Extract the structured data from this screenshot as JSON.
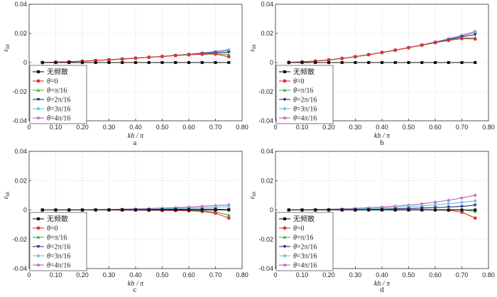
{
  "chart_data": [
    {
      "type": "line",
      "panel_label": "a",
      "xlabel": "kh / π",
      "ylabel": "ε_kh",
      "xlim": [
        0,
        0.8
      ],
      "ylim": [
        -0.04,
        0.04
      ],
      "xticks": [
        "0",
        "0.10",
        "0.20",
        "0.30",
        "0.40",
        "0.50",
        "0.60",
        "0.70",
        "0.80"
      ],
      "yticks": [
        "0.04",
        "0.02",
        "0",
        "-0.02",
        "-0.04"
      ],
      "grid": true,
      "legend_position": "bottom-left",
      "x": [
        0.05,
        0.1,
        0.15,
        0.2,
        0.25,
        0.3,
        0.35,
        0.4,
        0.45,
        0.5,
        0.55,
        0.6,
        0.65,
        0.7,
        0.75
      ],
      "series": [
        {
          "name": "无频散",
          "color": "#111111",
          "marker": "square",
          "values": [
            0,
            0,
            0,
            0,
            0,
            0,
            0,
            0,
            0,
            0,
            0,
            0,
            0,
            0,
            0
          ]
        },
        {
          "name": "θ=0",
          "color": "#e03030",
          "marker": "circle",
          "values": [
            0.0,
            0.0002,
            0.0005,
            0.0009,
            0.0014,
            0.0019,
            0.0024,
            0.003,
            0.0036,
            0.0042,
            0.0048,
            0.0053,
            0.0057,
            0.0058,
            0.004
          ]
        },
        {
          "name": "θ=π/16",
          "color": "#44b044",
          "marker": "triangle-up",
          "values": [
            0.0,
            0.0002,
            0.0005,
            0.0009,
            0.0014,
            0.0019,
            0.0024,
            0.003,
            0.0036,
            0.0042,
            0.0048,
            0.0054,
            0.0059,
            0.0062,
            0.0054
          ]
        },
        {
          "name": "θ=2π/16",
          "color": "#2a2a8a",
          "marker": "triangle-down",
          "values": [
            0.0,
            0.0002,
            0.0005,
            0.0009,
            0.0014,
            0.0019,
            0.0024,
            0.003,
            0.0036,
            0.0042,
            0.0049,
            0.0055,
            0.0062,
            0.0068,
            0.007
          ]
        },
        {
          "name": "θ=3π/16",
          "color": "#5bc8d8",
          "marker": "diamond",
          "values": [
            0.0,
            0.0002,
            0.0005,
            0.0009,
            0.0014,
            0.0019,
            0.0024,
            0.003,
            0.0036,
            0.0042,
            0.0049,
            0.0056,
            0.0064,
            0.0073,
            0.0082
          ]
        },
        {
          "name": "θ=4π/16",
          "color": "#c060c0",
          "marker": "star",
          "values": [
            0.0,
            0.0002,
            0.0005,
            0.0009,
            0.0014,
            0.0019,
            0.0024,
            0.003,
            0.0036,
            0.0042,
            0.0049,
            0.0057,
            0.0066,
            0.0076,
            0.0088
          ]
        }
      ]
    },
    {
      "type": "line",
      "panel_label": "b",
      "xlabel": "kh / π",
      "ylabel": "ε_kh",
      "xlim": [
        0,
        0.8
      ],
      "ylim": [
        -0.04,
        0.04
      ],
      "xticks": [
        "0",
        "0.10",
        "0.20",
        "0.30",
        "0.40",
        "0.50",
        "0.60",
        "0.70",
        "0.80"
      ],
      "yticks": [
        "0.04",
        "0.02",
        "0",
        "-0.02",
        "-0.04"
      ],
      "grid": true,
      "legend_position": "bottom-left",
      "x": [
        0.05,
        0.1,
        0.15,
        0.2,
        0.25,
        0.3,
        0.35,
        0.4,
        0.45,
        0.5,
        0.55,
        0.6,
        0.65,
        0.7,
        0.75
      ],
      "series": [
        {
          "name": "无频散",
          "color": "#111111",
          "marker": "square",
          "values": [
            0,
            0,
            0,
            0,
            0,
            0,
            0,
            0,
            0,
            0,
            0,
            0,
            0,
            0,
            0
          ]
        },
        {
          "name": "θ=0",
          "color": "#e03030",
          "marker": "circle",
          "values": [
            0.0001,
            0.0004,
            0.001,
            0.0018,
            0.0028,
            0.004,
            0.0054,
            0.0069,
            0.0085,
            0.0102,
            0.0119,
            0.0136,
            0.0152,
            0.0164,
            0.0162
          ]
        },
        {
          "name": "θ=π/16",
          "color": "#44b044",
          "marker": "triangle-up",
          "values": [
            0.0001,
            0.0004,
            0.001,
            0.0018,
            0.0028,
            0.004,
            0.0054,
            0.0069,
            0.0085,
            0.0102,
            0.0119,
            0.0137,
            0.0154,
            0.0168,
            0.017
          ]
        },
        {
          "name": "θ=2π/16",
          "color": "#2a2a8a",
          "marker": "triangle-down",
          "values": [
            0.0001,
            0.0004,
            0.001,
            0.0018,
            0.0028,
            0.004,
            0.0054,
            0.0069,
            0.0085,
            0.0102,
            0.012,
            0.0139,
            0.0158,
            0.0177,
            0.0192
          ]
        },
        {
          "name": "θ=3π/16",
          "color": "#5bc8d8",
          "marker": "diamond",
          "values": [
            0.0001,
            0.0004,
            0.001,
            0.0018,
            0.0028,
            0.004,
            0.0054,
            0.0069,
            0.0085,
            0.0102,
            0.012,
            0.014,
            0.0161,
            0.0183,
            0.0205
          ]
        },
        {
          "name": "θ=4π/16",
          "color": "#c060c0",
          "marker": "star",
          "values": [
            0.0001,
            0.0004,
            0.001,
            0.0018,
            0.0028,
            0.004,
            0.0054,
            0.0069,
            0.0085,
            0.0103,
            0.0121,
            0.0141,
            0.0163,
            0.0187,
            0.0213
          ]
        }
      ]
    },
    {
      "type": "line",
      "panel_label": "c",
      "xlabel": "kh / π",
      "ylabel": "ε_kh",
      "xlim": [
        0,
        0.8
      ],
      "ylim": [
        -0.04,
        0.04
      ],
      "xticks": [
        "0",
        "0.10",
        "0.20",
        "0.30",
        "0.40",
        "0.50",
        "0.60",
        "0.70",
        "0.80"
      ],
      "yticks": [
        "0.04",
        "0.02",
        "0",
        "-0.02",
        "-0.04"
      ],
      "grid": true,
      "legend_position": "bottom-left",
      "x": [
        0.05,
        0.1,
        0.15,
        0.2,
        0.25,
        0.3,
        0.35,
        0.4,
        0.45,
        0.5,
        0.55,
        0.6,
        0.65,
        0.7,
        0.75
      ],
      "series": [
        {
          "name": "无频散",
          "color": "#111111",
          "marker": "square",
          "values": [
            0,
            0,
            0,
            0,
            0,
            0,
            0,
            0,
            0,
            0,
            0,
            0,
            0,
            0,
            0
          ]
        },
        {
          "name": "θ=0",
          "color": "#e03030",
          "marker": "circle",
          "values": [
            0,
            0,
            0,
            0,
            0,
            0,
            -0.0001,
            -0.0001,
            -0.0002,
            -0.0003,
            -0.0004,
            -0.0006,
            -0.001,
            -0.0022,
            -0.0055
          ]
        },
        {
          "name": "θ=π/16",
          "color": "#44b044",
          "marker": "triangle-up",
          "values": [
            0,
            0,
            0,
            0,
            0,
            0,
            0,
            0,
            -0.0001,
            -0.0001,
            -0.0002,
            -0.0003,
            -0.0006,
            -0.0014,
            -0.0035
          ]
        },
        {
          "name": "θ=2π/16",
          "color": "#2a2a8a",
          "marker": "triangle-down",
          "values": [
            0,
            0,
            0,
            0,
            0.0001,
            0.0001,
            0.0002,
            0.0002,
            0.0003,
            0.0004,
            0.0005,
            0.0006,
            0.0006,
            0.0006,
            0.0002
          ]
        },
        {
          "name": "θ=3π/16",
          "color": "#5bc8d8",
          "marker": "diamond",
          "values": [
            0,
            0,
            0.0001,
            0.0001,
            0.0002,
            0.0003,
            0.0004,
            0.0005,
            0.0007,
            0.0009,
            0.0011,
            0.0013,
            0.0016,
            0.0019,
            0.0022
          ]
        },
        {
          "name": "θ=4π/16",
          "color": "#c060c0",
          "marker": "star",
          "values": [
            0,
            0.0001,
            0.0001,
            0.0002,
            0.0003,
            0.0004,
            0.0006,
            0.0008,
            0.001,
            0.0013,
            0.0016,
            0.002,
            0.0025,
            0.003,
            0.0035
          ]
        }
      ]
    },
    {
      "type": "line",
      "panel_label": "d",
      "xlabel": "kh / π",
      "ylabel": "ε_kh",
      "xlim": [
        0,
        0.8
      ],
      "ylim": [
        -0.04,
        0.04
      ],
      "xticks": [
        "0",
        "0.10",
        "0.20",
        "0.30",
        "0.40",
        "0.50",
        "0.60",
        "0.70",
        "0.80"
      ],
      "yticks": [
        "0.04",
        "0.02",
        "0",
        "-0.02",
        "-0.04"
      ],
      "grid": true,
      "legend_position": "bottom-left",
      "x": [
        0.05,
        0.1,
        0.15,
        0.2,
        0.25,
        0.3,
        0.35,
        0.4,
        0.45,
        0.5,
        0.55,
        0.6,
        0.65,
        0.7,
        0.75
      ],
      "series": [
        {
          "name": "无频散",
          "color": "#111111",
          "marker": "square",
          "values": [
            0,
            0,
            0,
            0,
            0,
            0,
            0,
            0,
            0,
            0,
            0,
            0,
            0,
            0,
            0
          ]
        },
        {
          "name": "θ=0",
          "color": "#e03030",
          "marker": "circle",
          "values": [
            0,
            0,
            0,
            0,
            0,
            0,
            0,
            0,
            0,
            0,
            0,
            0,
            -0.0002,
            -0.0015,
            -0.0055
          ]
        },
        {
          "name": "θ=π/16",
          "color": "#44b044",
          "marker": "triangle-up",
          "values": [
            0,
            0,
            0,
            0,
            0,
            0.0001,
            0.0001,
            0.0001,
            0.0002,
            0.0002,
            0.0003,
            0.0003,
            0.0003,
            0.0002,
            -0.001
          ]
        },
        {
          "name": "θ=2π/16",
          "color": "#2a2a8a",
          "marker": "triangle-down",
          "values": [
            0,
            0,
            0.0001,
            0.0001,
            0.0002,
            0.0003,
            0.0004,
            0.0006,
            0.0008,
            0.001,
            0.0013,
            0.0016,
            0.002,
            0.0024,
            0.0033
          ]
        },
        {
          "name": "θ=3π/16",
          "color": "#5bc8d8",
          "marker": "diamond",
          "values": [
            0,
            0.0001,
            0.0002,
            0.0003,
            0.0005,
            0.0007,
            0.001,
            0.0013,
            0.0017,
            0.0022,
            0.0028,
            0.0035,
            0.0043,
            0.0052,
            0.0062
          ]
        },
        {
          "name": "θ=4π/16",
          "color": "#c060c0",
          "marker": "star",
          "values": [
            0.0001,
            0.0002,
            0.0003,
            0.0005,
            0.0008,
            0.0011,
            0.0015,
            0.002,
            0.0026,
            0.0033,
            0.0042,
            0.0053,
            0.0066,
            0.0082,
            0.01
          ]
        }
      ]
    }
  ]
}
